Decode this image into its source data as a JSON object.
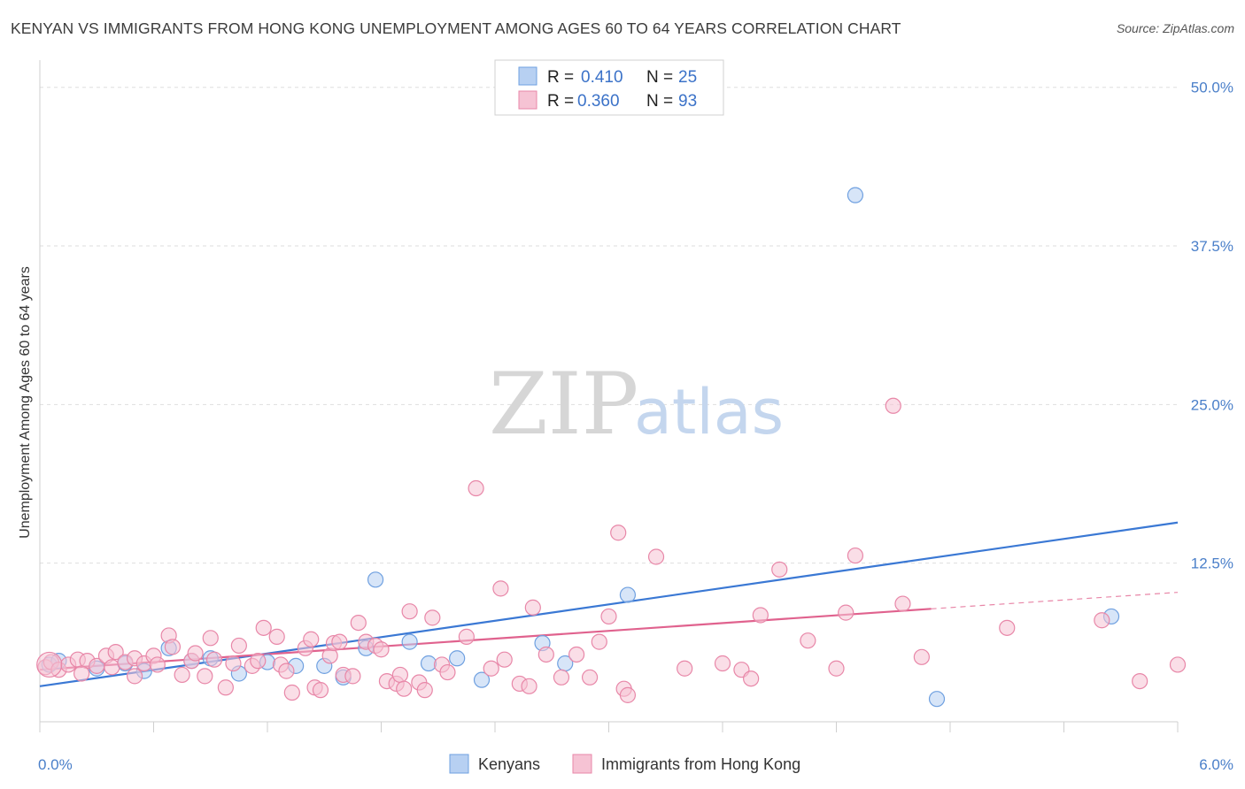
{
  "title": "KENYAN VS IMMIGRANTS FROM HONG KONG UNEMPLOYMENT AMONG AGES 60 TO 64 YEARS CORRELATION CHART",
  "source": "Source: ZipAtlas.com",
  "watermark": {
    "zip": "ZIP",
    "atlas": "atlas"
  },
  "chart_data": {
    "type": "scatter",
    "title": "KENYAN VS IMMIGRANTS FROM HONG KONG UNEMPLOYMENT AMONG AGES 60 TO 64 YEARS CORRELATION CHART",
    "xlabel": "",
    "ylabel": "Unemployment Among Ages 60 to 64 years",
    "xlim": [
      0,
      6
    ],
    "ylim": [
      0,
      52
    ],
    "x_tick_labels": [
      "0.0%",
      "6.0%"
    ],
    "y_ticks": [
      12.5,
      25.0,
      37.5,
      50.0
    ],
    "y_tick_labels": [
      "12.5%",
      "25.0%",
      "37.5%",
      "50.0%"
    ],
    "grid": true,
    "legend": [
      {
        "name": "Kenyans",
        "r_label": "R =",
        "r": "0.410",
        "n_label": "N =",
        "n": "25",
        "color": "#6fa0e0",
        "fill": "#b7d0f2"
      },
      {
        "name": "Immigrants from Hong Kong",
        "r_label": "R =",
        "r": "0.360",
        "n_label": "N =",
        "n": "93",
        "color": "#e887a8",
        "fill": "#f6c3d4"
      }
    ],
    "series": [
      {
        "name": "Kenyans",
        "color": "#6fa0e0",
        "fill": "#b7d0f2",
        "points": [
          [
            0.05,
            4.5
          ],
          [
            0.1,
            4.8
          ],
          [
            0.3,
            4.2
          ],
          [
            0.45,
            4.6
          ],
          [
            0.55,
            4.0
          ],
          [
            0.68,
            5.8
          ],
          [
            0.8,
            4.8
          ],
          [
            0.9,
            5.0
          ],
          [
            1.05,
            3.8
          ],
          [
            1.2,
            4.7
          ],
          [
            1.35,
            4.4
          ],
          [
            1.5,
            4.4
          ],
          [
            1.6,
            3.5
          ],
          [
            1.72,
            5.8
          ],
          [
            1.77,
            11.2
          ],
          [
            1.95,
            6.3
          ],
          [
            2.05,
            4.6
          ],
          [
            2.2,
            5.0
          ],
          [
            2.33,
            3.3
          ],
          [
            2.65,
            6.2
          ],
          [
            2.77,
            4.6
          ],
          [
            3.1,
            10.0
          ],
          [
            4.3,
            41.5
          ],
          [
            4.73,
            1.8
          ],
          [
            5.65,
            8.3
          ]
        ],
        "trend": {
          "x": [
            0,
            6
          ],
          "y": [
            2.8,
            15.7
          ],
          "color": "#3a78d4"
        }
      },
      {
        "name": "Immigrants from Hong Kong",
        "color": "#e887a8",
        "fill": "#f6c3d4",
        "points": [
          [
            0.03,
            4.3
          ],
          [
            0.06,
            4.7
          ],
          [
            0.1,
            4.1
          ],
          [
            0.15,
            4.5
          ],
          [
            0.2,
            4.9
          ],
          [
            0.25,
            4.8
          ],
          [
            0.3,
            4.4
          ],
          [
            0.35,
            5.2
          ],
          [
            0.38,
            4.3
          ],
          [
            0.4,
            5.5
          ],
          [
            0.45,
            4.7
          ],
          [
            0.5,
            5.0
          ],
          [
            0.55,
            4.6
          ],
          [
            0.6,
            5.2
          ],
          [
            0.62,
            4.5
          ],
          [
            0.68,
            6.8
          ],
          [
            0.7,
            5.9
          ],
          [
            0.75,
            3.7
          ],
          [
            0.8,
            4.8
          ],
          [
            0.82,
            5.4
          ],
          [
            0.87,
            3.6
          ],
          [
            0.9,
            6.6
          ],
          [
            0.92,
            4.9
          ],
          [
            0.98,
            2.7
          ],
          [
            1.02,
            4.6
          ],
          [
            1.05,
            6.0
          ],
          [
            1.12,
            4.4
          ],
          [
            1.15,
            4.8
          ],
          [
            1.18,
            7.4
          ],
          [
            1.25,
            6.7
          ],
          [
            1.27,
            4.5
          ],
          [
            1.3,
            4.0
          ],
          [
            1.33,
            2.3
          ],
          [
            1.4,
            5.8
          ],
          [
            1.43,
            6.5
          ],
          [
            1.45,
            2.7
          ],
          [
            1.48,
            2.5
          ],
          [
            1.53,
            5.2
          ],
          [
            1.55,
            6.2
          ],
          [
            1.58,
            6.3
          ],
          [
            1.6,
            3.7
          ],
          [
            1.65,
            3.6
          ],
          [
            1.68,
            7.8
          ],
          [
            1.72,
            6.3
          ],
          [
            1.77,
            6.0
          ],
          [
            1.8,
            5.7
          ],
          [
            1.83,
            3.2
          ],
          [
            1.88,
            3.0
          ],
          [
            1.9,
            3.7
          ],
          [
            1.92,
            2.6
          ],
          [
            1.95,
            8.7
          ],
          [
            2.0,
            3.1
          ],
          [
            2.03,
            2.5
          ],
          [
            2.07,
            8.2
          ],
          [
            2.12,
            4.5
          ],
          [
            2.15,
            3.9
          ],
          [
            2.25,
            6.7
          ],
          [
            2.3,
            18.4
          ],
          [
            2.38,
            4.2
          ],
          [
            2.43,
            10.5
          ],
          [
            2.45,
            4.9
          ],
          [
            2.53,
            3.0
          ],
          [
            2.58,
            2.8
          ],
          [
            2.6,
            9.0
          ],
          [
            2.67,
            5.3
          ],
          [
            2.75,
            3.5
          ],
          [
            2.83,
            5.3
          ],
          [
            2.9,
            3.5
          ],
          [
            2.95,
            6.3
          ],
          [
            3.0,
            8.3
          ],
          [
            3.05,
            14.9
          ],
          [
            3.08,
            2.6
          ],
          [
            3.1,
            2.1
          ],
          [
            3.25,
            13.0
          ],
          [
            3.4,
            4.2
          ],
          [
            3.6,
            4.6
          ],
          [
            3.7,
            4.1
          ],
          [
            3.75,
            3.4
          ],
          [
            3.8,
            8.4
          ],
          [
            3.9,
            12.0
          ],
          [
            4.05,
            6.4
          ],
          [
            4.2,
            4.2
          ],
          [
            4.25,
            8.6
          ],
          [
            4.3,
            13.1
          ],
          [
            4.5,
            24.9
          ],
          [
            4.55,
            9.3
          ],
          [
            4.65,
            5.1
          ],
          [
            5.1,
            7.4
          ],
          [
            5.6,
            8.0
          ],
          [
            5.8,
            3.2
          ],
          [
            6.0,
            4.5
          ],
          [
            0.22,
            3.8
          ],
          [
            0.5,
            3.6
          ]
        ],
        "trend": {
          "x": [
            0,
            4.7
          ],
          "y": [
            4.1,
            8.9
          ],
          "color": "#e0628e"
        },
        "trend_extension": {
          "x": [
            4.7,
            6.0
          ],
          "y": [
            8.9,
            10.2
          ],
          "color": "#e887a8",
          "dashed": true
        }
      }
    ]
  }
}
